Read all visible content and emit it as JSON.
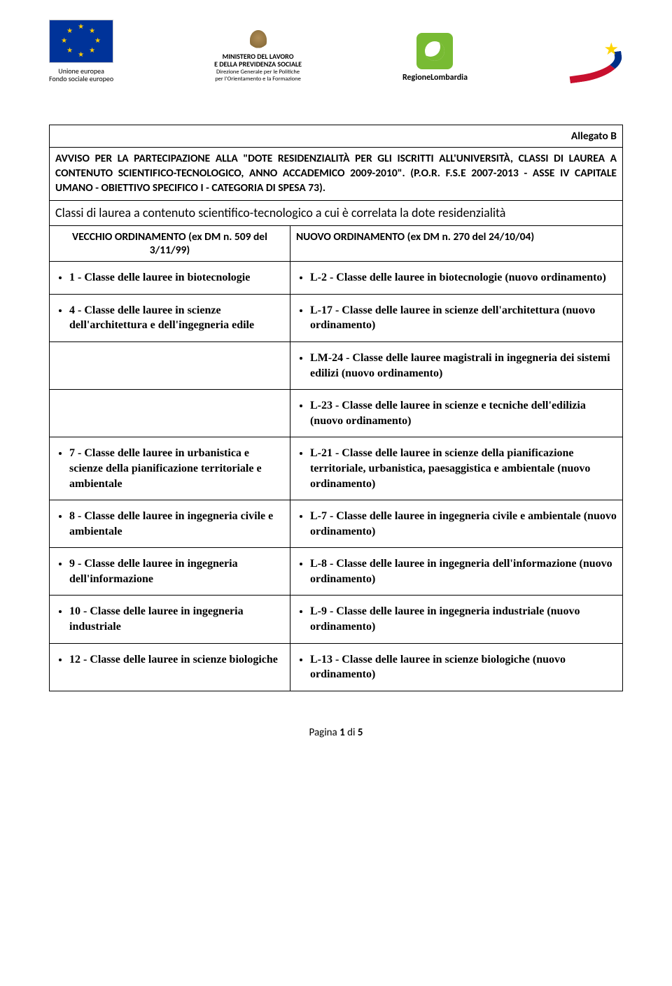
{
  "logos": {
    "eu": {
      "line1": "Unione europea",
      "line2": "Fondo sociale europeo"
    },
    "ministero": {
      "line1": "MINISTERO DEL LAVORO",
      "line2": "E DELLA PREVIDENZA SOCIALE",
      "line3": "Direzione Generale per le Politiche",
      "line4": "per l'Orientamento e la Formazione"
    },
    "lombardia": {
      "label": "RegioneLombardia"
    }
  },
  "allegato": "Allegato B",
  "avviso": "AVVISO PER LA PARTECIPAZIONE ALLA \"DOTE RESIDENZIALITÀ PER GLI ISCRITTI ALL'UNIVERSITÀ, CLASSI DI LAUREA A CONTENUTO SCIENTIFICO-TECNOLOGICO, ANNO ACCADEMICO 2009-2010\". (P.O.R. F.S.E 2007-2013 - ASSE IV CAPITALE UMANO - OBIETTIVO SPECIFICO I - CATEGORIA DI SPESA 73).",
  "subhead": "Classi di laurea a contenuto scientifico-tecnologico a cui è correlata la dote residenzialità",
  "col_left_head": "VECCHIO ORDINAMENTO (ex DM n. 509 del 3/11/99)",
  "col_right_head": "NUOVO ORDINAMENTO (ex DM n. 270 del 24/10/04)",
  "rows": [
    {
      "left": [
        "1 - Classe delle lauree in biotecnologie"
      ],
      "right": [
        "L-2 - Classe delle lauree in biotecnologie (nuovo ordinamento)"
      ]
    },
    {
      "left": [
        "4 - Classe delle lauree in scienze dell'architettura e dell'ingegneria edile"
      ],
      "right": [
        "L-17 - Classe delle lauree in scienze dell'architettura (nuovo ordinamento)"
      ]
    },
    {
      "left": [],
      "right": [
        "LM-24 - Classe delle lauree magistrali in ingegneria dei sistemi edilizi (nuovo ordinamento)"
      ]
    },
    {
      "left": [],
      "right": [
        "L-23 - Classe delle lauree in scienze e tecniche dell'edilizia (nuovo ordinamento)"
      ]
    },
    {
      "left": [
        "7 - Classe delle lauree in urbanistica e scienze della pianificazione territoriale e ambientale"
      ],
      "right": [
        "L-21 - Classe delle lauree in scienze della pianificazione territoriale, urbanistica, paesaggistica e ambientale (nuovo ordinamento)"
      ]
    },
    {
      "left": [
        "8 - Classe delle lauree in ingegneria civile e ambientale"
      ],
      "right": [
        "L-7 - Classe delle lauree in ingegneria civile e ambientale (nuovo ordinamento)"
      ]
    },
    {
      "left": [
        "9 - Classe delle lauree in ingegneria dell'informazione"
      ],
      "right": [
        "L-8 - Classe delle lauree in ingegneria dell'informazione (nuovo ordinamento)"
      ]
    },
    {
      "left": [
        "10 - Classe delle lauree in ingegneria industriale"
      ],
      "right": [
        "L-9 - Classe delle lauree in ingegneria industriale (nuovo ordinamento)"
      ]
    },
    {
      "left": [
        "12 - Classe delle lauree in scienze biologiche"
      ],
      "right": [
        "L-13 - Classe delle lauree in scienze biologiche (nuovo ordinamento)"
      ]
    }
  ],
  "footer": {
    "prefix": "Pagina ",
    "page": "1",
    "mid": " di ",
    "total": "5"
  },
  "left_col_width_pct": 42
}
